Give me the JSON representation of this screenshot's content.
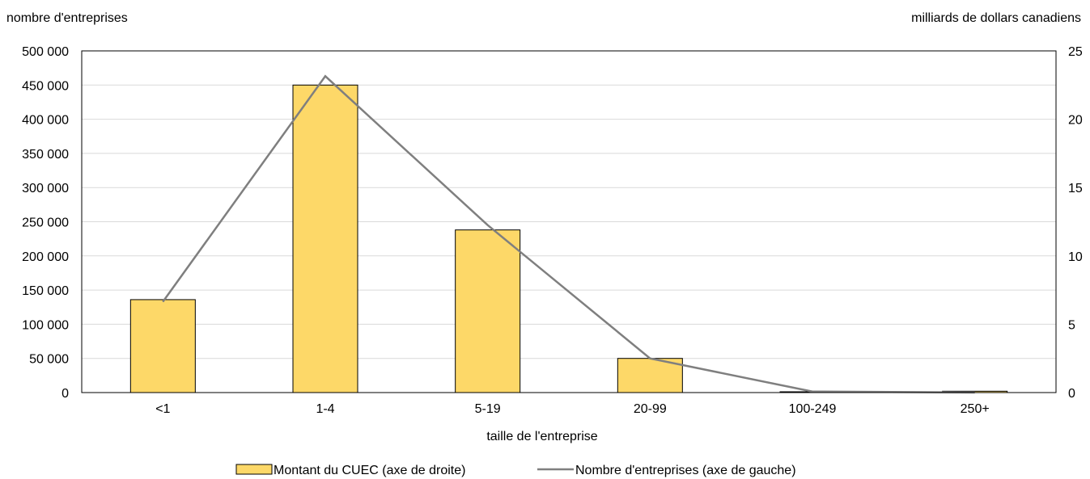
{
  "chart_data": {
    "type": "bar",
    "left_axis_title": "nombre d'entreprises",
    "right_axis_title": "milliards de dollars canadiens",
    "xlabel": "taille de l'entreprise",
    "categories": [
      "<1",
      "1-4",
      "5-19",
      "20-99",
      "100-249",
      "250+"
    ],
    "left_axis": {
      "ylim": [
        0,
        500000
      ],
      "ticks": [
        "0",
        "50 000",
        "100 000",
        "150 000",
        "200 000",
        "250 000",
        "300 000",
        "350 000",
        "400 000",
        "450 000",
        "500 000"
      ]
    },
    "right_axis": {
      "ylim": [
        0,
        25
      ],
      "ticks": [
        "0",
        "5",
        "10",
        "15",
        "20",
        "25"
      ]
    },
    "series": [
      {
        "name": "Montant du CUEC (axe de droite)",
        "type": "bar",
        "axis": "right",
        "values": [
          6.8,
          22.5,
          11.9,
          2.5,
          0.03,
          0.1
        ],
        "color": "#FDD868"
      },
      {
        "name": "Nombre d'entreprises (axe de gauche)",
        "type": "line",
        "axis": "left",
        "values": [
          133000,
          463000,
          245000,
          50000,
          1500,
          200
        ],
        "color": "#7f7f7f"
      }
    ],
    "grid": true,
    "legend_position": "bottom"
  }
}
